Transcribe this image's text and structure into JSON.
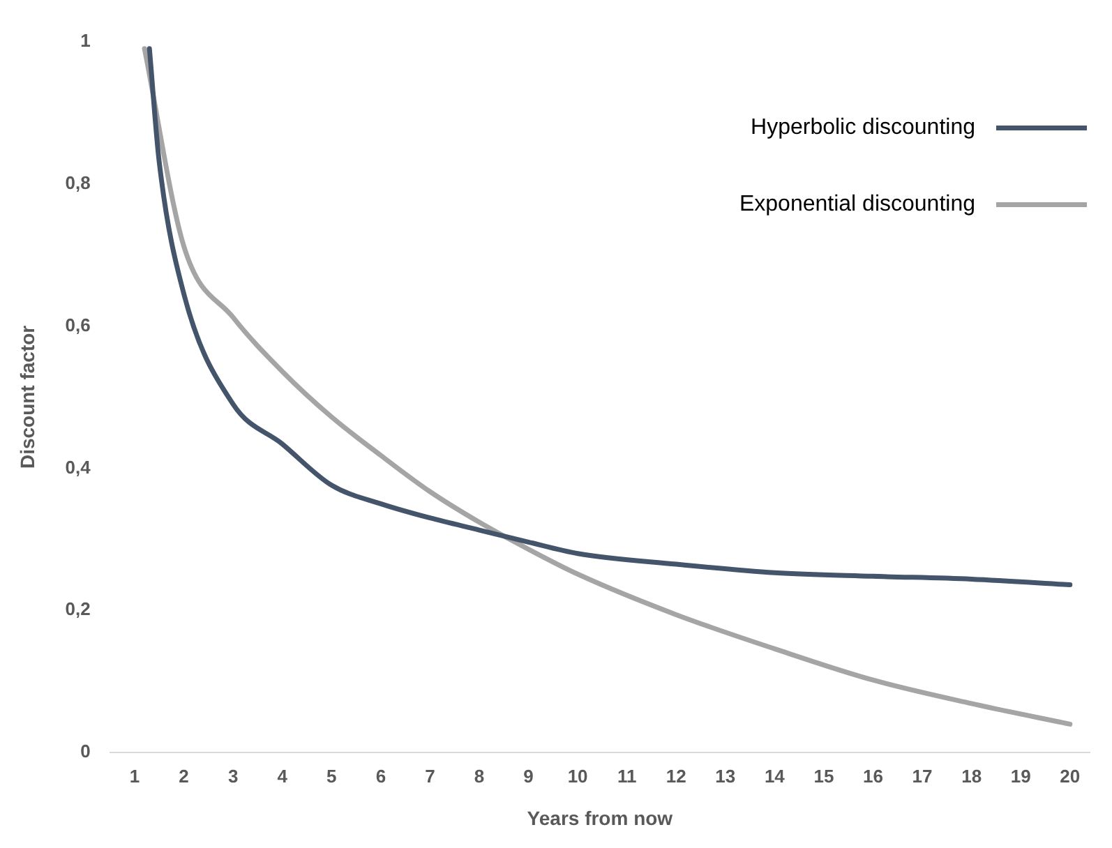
{
  "chart_data": {
    "type": "line",
    "xlabel": "Years from now",
    "ylabel": "Discount factor",
    "xlim": [
      0.5,
      20.4
    ],
    "xticks": [
      1,
      2,
      3,
      4,
      5,
      6,
      7,
      8,
      9,
      10,
      11,
      12,
      13,
      14,
      15,
      16,
      17,
      18,
      19,
      20
    ],
    "ylim": [
      0,
      1
    ],
    "yticks": [
      {
        "value": 0,
        "label": "0"
      },
      {
        "value": 0.2,
        "label": "0,2"
      },
      {
        "value": 0.4,
        "label": "0,4"
      },
      {
        "value": 0.6,
        "label": "0,6"
      },
      {
        "value": 0.8,
        "label": "0,8"
      },
      {
        "value": 1,
        "label": "1"
      }
    ],
    "grid": false,
    "legend": "top right",
    "marker": "none",
    "line_style": "solid",
    "series": [
      {
        "name": "Hyperbolic discounting",
        "color": "#44546a",
        "x": [
          1.3,
          1.5,
          2,
          3,
          4,
          5,
          6,
          7,
          8,
          9,
          10,
          12,
          14,
          16,
          18,
          20
        ],
        "values": [
          0.99,
          0.83,
          0.645,
          0.49,
          0.434,
          0.376,
          0.35,
          0.33,
          0.313,
          0.296,
          0.28,
          0.265,
          0.253,
          0.248,
          0.244,
          0.236
        ]
      },
      {
        "name": "Exponential discounting",
        "color": "#a5a5a5",
        "x": [
          1.2,
          2,
          3,
          4,
          5,
          6,
          7,
          8,
          9,
          10,
          12,
          14,
          16,
          18,
          20
        ],
        "values": [
          0.99,
          0.712,
          0.612,
          0.536,
          0.472,
          0.418,
          0.367,
          0.324,
          0.286,
          0.251,
          0.194,
          0.146,
          0.102,
          0.069,
          0.04
        ]
      }
    ]
  }
}
